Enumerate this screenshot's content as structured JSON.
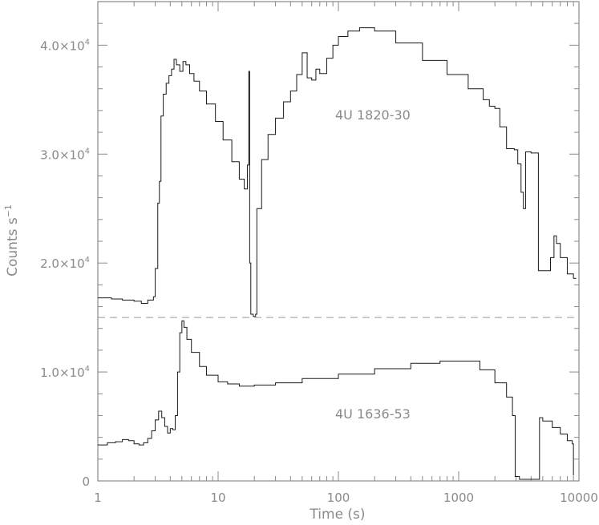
{
  "chart_data": {
    "type": "line",
    "xlabel": "Time (s)",
    "ylabel": "Counts s",
    "ylabel_exp": "−1",
    "x_scale": "log",
    "xlim": [
      1,
      10000
    ],
    "ylim": [
      0,
      44000
    ],
    "x_ticks": [
      {
        "value": 1,
        "label": "1"
      },
      {
        "value": 10,
        "label": "10"
      },
      {
        "value": 100,
        "label": "100"
      },
      {
        "value": 1000,
        "label": "1000"
      },
      {
        "value": 10000,
        "label": "10000"
      }
    ],
    "y_ticks": [
      {
        "value": 0,
        "mant": "0",
        "exp": ""
      },
      {
        "value": 10000,
        "mant": "1.0×10",
        "exp": "4"
      },
      {
        "value": 20000,
        "mant": "2.0×10",
        "exp": "4"
      },
      {
        "value": 30000,
        "mant": "3.0×10",
        "exp": "4"
      },
      {
        "value": 40000,
        "mant": "4.0×10",
        "exp": "4"
      }
    ],
    "separator_y": 15000,
    "series": [
      {
        "name": "4U 1820-30",
        "step": true,
        "points": [
          [
            1.0,
            16800
          ],
          [
            1.3,
            16700
          ],
          [
            1.6,
            16600
          ],
          [
            2.0,
            16500
          ],
          [
            2.3,
            16300
          ],
          [
            2.6,
            16600
          ],
          [
            2.9,
            16900
          ],
          [
            3.0,
            19500
          ],
          [
            3.15,
            25500
          ],
          [
            3.25,
            27500
          ],
          [
            3.35,
            33500
          ],
          [
            3.5,
            35500
          ],
          [
            3.7,
            36500
          ],
          [
            3.9,
            37200
          ],
          [
            4.1,
            37800
          ],
          [
            4.3,
            38700
          ],
          [
            4.5,
            38200
          ],
          [
            4.8,
            37600
          ],
          [
            5.1,
            38500
          ],
          [
            5.4,
            38200
          ],
          [
            5.8,
            37400
          ],
          [
            6.3,
            36700
          ],
          [
            7.0,
            35800
          ],
          [
            8.0,
            34600
          ],
          [
            9.5,
            33000
          ],
          [
            11.0,
            31300
          ],
          [
            13.0,
            29300
          ],
          [
            15.0,
            27700
          ],
          [
            16.5,
            26800
          ],
          [
            17.5,
            29000
          ],
          [
            18.0,
            37600
          ],
          [
            18.3,
            20000
          ],
          [
            18.7,
            15300
          ],
          [
            19.6,
            15100
          ],
          [
            20.5,
            15300
          ],
          [
            21.0,
            25000
          ],
          [
            23.0,
            29500
          ],
          [
            26.0,
            31800
          ],
          [
            30.0,
            33300
          ],
          [
            35.0,
            34800
          ],
          [
            40.0,
            35800
          ],
          [
            45.0,
            37300
          ],
          [
            50.0,
            39300
          ],
          [
            55.0,
            37000
          ],
          [
            60.0,
            36800
          ],
          [
            65.0,
            37800
          ],
          [
            70.0,
            37400
          ],
          [
            80.0,
            38800
          ],
          [
            90.0,
            40000
          ],
          [
            100.0,
            40800
          ],
          [
            120.0,
            41300
          ],
          [
            150.0,
            41600
          ],
          [
            200.0,
            41300
          ],
          [
            300.0,
            40200
          ],
          [
            500.0,
            38600
          ],
          [
            800.0,
            37300
          ],
          [
            1200.0,
            36000
          ],
          [
            1600.0,
            35000
          ],
          [
            1800.0,
            34400
          ],
          [
            2000.0,
            34200
          ],
          [
            2200.0,
            32500
          ],
          [
            2500.0,
            30500
          ],
          [
            2900.0,
            30400
          ],
          [
            3100.0,
            29100
          ],
          [
            3300.0,
            26500
          ],
          [
            3450.0,
            25000
          ],
          [
            3600.0,
            30200
          ],
          [
            4000.0,
            30100
          ],
          [
            4600.0,
            19300
          ],
          [
            5400.0,
            19300
          ],
          [
            5800.0,
            20500
          ],
          [
            6200.0,
            22500
          ],
          [
            6500.0,
            21800
          ],
          [
            7000.0,
            20500
          ],
          [
            8000.0,
            19000
          ],
          [
            9000.0,
            18600
          ],
          [
            9500.0,
            18600
          ]
        ]
      },
      {
        "name": "4U 1636-53",
        "step": true,
        "points": [
          [
            1.0,
            3300
          ],
          [
            1.2,
            3500
          ],
          [
            1.4,
            3600
          ],
          [
            1.6,
            3800
          ],
          [
            1.8,
            3700
          ],
          [
            2.0,
            3400
          ],
          [
            2.2,
            3300
          ],
          [
            2.4,
            3500
          ],
          [
            2.6,
            3900
          ],
          [
            2.8,
            4600
          ],
          [
            3.0,
            5600
          ],
          [
            3.2,
            6400
          ],
          [
            3.4,
            5800
          ],
          [
            3.6,
            5000
          ],
          [
            3.8,
            4400
          ],
          [
            4.0,
            4800
          ],
          [
            4.2,
            4700
          ],
          [
            4.4,
            6000
          ],
          [
            4.6,
            10000
          ],
          [
            4.8,
            13600
          ],
          [
            5.0,
            14700
          ],
          [
            5.2,
            14100
          ],
          [
            5.5,
            13000
          ],
          [
            6.0,
            11800
          ],
          [
            7.0,
            10500
          ],
          [
            8.0,
            9700
          ],
          [
            10.0,
            9100
          ],
          [
            12.0,
            8900
          ],
          [
            15.0,
            8700
          ],
          [
            20.0,
            8800
          ],
          [
            30.0,
            9000
          ],
          [
            50.0,
            9400
          ],
          [
            100.0,
            9800
          ],
          [
            200.0,
            10300
          ],
          [
            400.0,
            10800
          ],
          [
            700.0,
            11000
          ],
          [
            1000.0,
            11000
          ],
          [
            1500.0,
            10200
          ],
          [
            2000.0,
            9000
          ],
          [
            2500.0,
            7700
          ],
          [
            2800.0,
            6000
          ],
          [
            2950.0,
            400
          ],
          [
            3200.0,
            150
          ],
          [
            4000.0,
            150
          ],
          [
            4500.0,
            150
          ],
          [
            4700.0,
            5800
          ],
          [
            5000.0,
            5500
          ],
          [
            6000.0,
            4900
          ],
          [
            7000.0,
            4300
          ],
          [
            8000.0,
            3700
          ],
          [
            8800.0,
            3400
          ],
          [
            9000.0,
            500
          ]
        ]
      }
    ]
  }
}
